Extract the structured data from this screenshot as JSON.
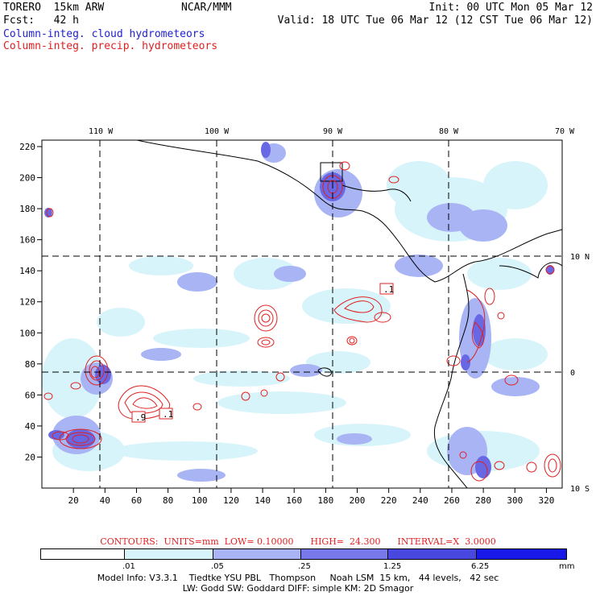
{
  "header": {
    "model": "TORERO  15km ARW",
    "org": "NCAR/MMM",
    "init": "Init: 00 UTC Mon 05 Mar 12",
    "fcst": "Fcst:   42 h",
    "valid": "Valid: 18 UTC Tue 06 Mar 12 (12 CST Tue 06 Mar 12)",
    "field1": "Column-integ. cloud hydrometeors",
    "field2": "Column-integ. precip. hydrometeors"
  },
  "axes": {
    "lon_labels": [
      "110 W",
      "100 W",
      "90 W",
      "80 W",
      "70 W"
    ],
    "lat_labels": [
      "10 N",
      "0",
      "10 S"
    ],
    "x_ticks": [
      "20",
      "40",
      "60",
      "80",
      "100",
      "120",
      "140",
      "160",
      "180",
      "200",
      "220",
      "240",
      "260",
      "280",
      "300",
      "320"
    ],
    "y_ticks": [
      "220",
      "200",
      "180",
      "160",
      "140",
      "120",
      "100",
      "80",
      "60",
      "40",
      "20"
    ]
  },
  "contour_labels": [
    ".1",
    ".9",
    ".1"
  ],
  "contours_line": "CONTOURS:  UNITS=mm  LOW= 0.10000      HIGH=  24.300      INTERVAL=X  3.0000",
  "colorbar": {
    "labels": [
      ".01",
      ".05",
      ".25",
      "1.25",
      "6.25"
    ],
    "units": "mm",
    "colors": [
      "#ffffff",
      "#d8f4fb",
      "#a8b4f4",
      "#7878ea",
      "#4848e0",
      "#1818e8"
    ]
  },
  "model_info": {
    "line1": "Model Info: V3.3.1    Tiedtke YSU PBL   Thompson     Noah LSM  15 km,   44 levels,   42 sec",
    "line2": "LW: Godd SW: Goddard DIFF: simple KM: 2D Smagor"
  }
}
